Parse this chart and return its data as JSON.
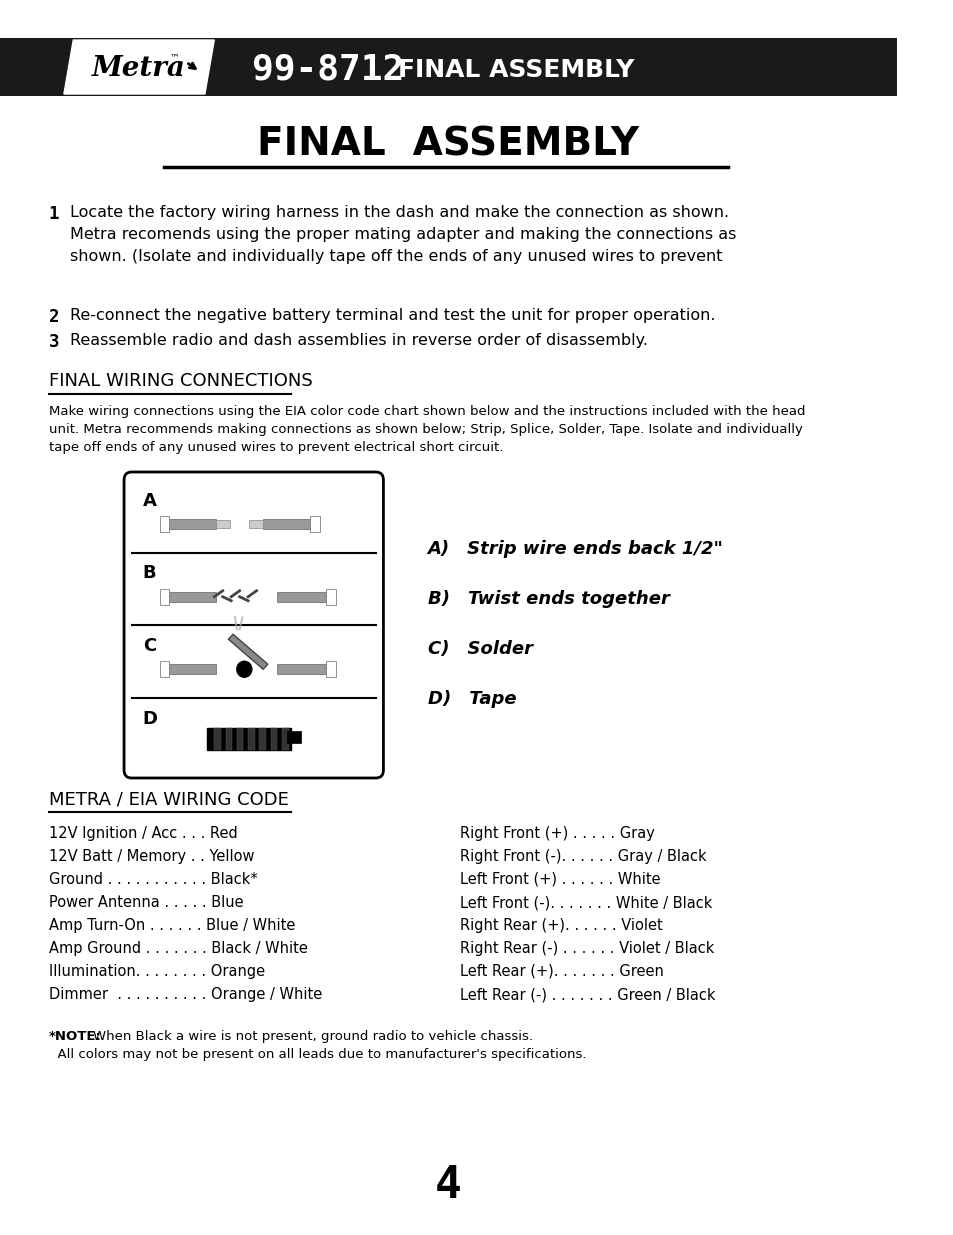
{
  "bg_color": "#ffffff",
  "header_bg": "#1a1a1a",
  "header_text_color": "#ffffff",
  "header_model": "99-8712",
  "header_title": "FINAL ASSEMBLY",
  "page_title": "FINAL  ASSEMBLY",
  "section1_title": "FINAL WIRING CONNECTIONS",
  "step1_num": "1",
  "step1_text": "Locate the factory wiring harness in the dash and make the connection as shown.\nMetra recomends using the proper mating adapter and making the connections as\nshown. (Isolate and individually tape off the ends of any unused wires to prevent",
  "step2_num": "2",
  "step2_text": "Re-connect the negative battery terminal and test the unit for proper operation.",
  "step3_num": "3",
  "step3_text": "Reassemble radio and dash assemblies in reverse order of disassembly.",
  "wiring_intro": "Make wiring connections using the EIA color code chart shown below and the instructions included with the head\nunit. Metra recommends making connections as shown below; Strip, Splice, Solder, Tape. Isolate and individually\ntape off ends of any unused wires to prevent electrical short circuit.",
  "diagram_labels": [
    "A",
    "B",
    "C",
    "D"
  ],
  "diagram_steps": [
    "A) Strip wire ends back 1/2\"",
    "B) Twist ends together",
    "C) Solder",
    "D) Tape"
  ],
  "section2_title": "METRA / EIA WIRING CODE",
  "wiring_left": [
    "12V Ignition / Acc . . . Red",
    "12V Batt / Memory . . Yellow",
    "Ground . . . . . . . . . . . Black*",
    "Power Antenna . . . . . Blue",
    "Amp Turn-On . . . . . . Blue / White",
    "Amp Ground . . . . . . . Black / White",
    "Illumination. . . . . . . . Orange",
    "Dimmer  . . . . . . . . . . Orange / White"
  ],
  "wiring_right": [
    "Right Front (+) . . . . . Gray",
    "Right Front (-). . . . . . Gray / Black",
    "Left Front (+) . . . . . . White",
    "Left Front (-). . . . . . . White / Black",
    "Right Rear (+). . . . . . Violet",
    "Right Rear (-) . . . . . . Violet / Black",
    "Left Rear (+). . . . . . . Green",
    "Left Rear (-) . . . . . . . Green / Black"
  ],
  "note_text": "*NOTE: When Black a wire is not present, ground radio to vehicle chassis.\n  All colors may not be present on all leads due to manufacturer's specifications.",
  "page_number": "4"
}
